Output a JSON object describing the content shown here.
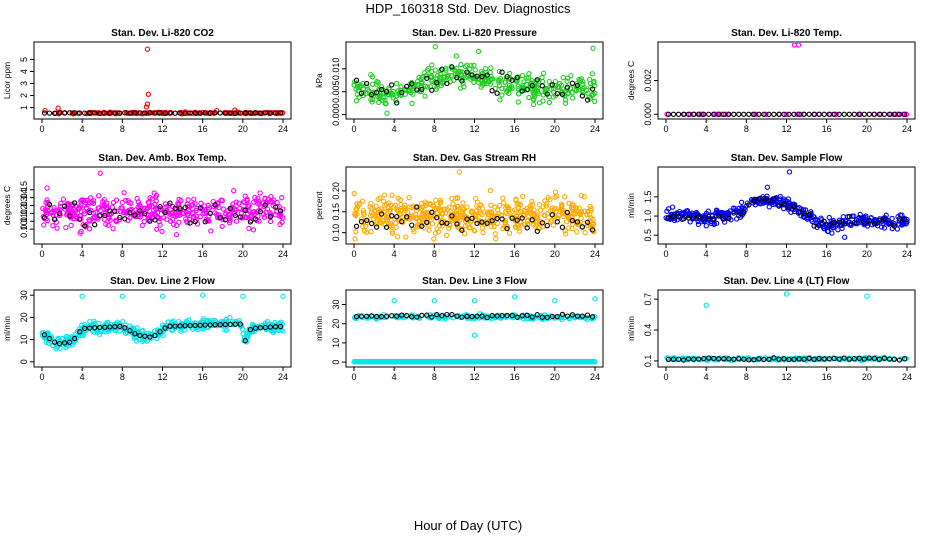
{
  "page": {
    "title": "HDP_160318  Std. Dev. Diagnostics",
    "xlabel": "Hour of Day (UTC)"
  },
  "colors": {
    "axis": "#000000",
    "overlay": "#000000"
  },
  "chart_data": [
    {
      "id": "co2",
      "type": "scatter",
      "title": "Stan. Dev. Li-820 CO2",
      "ylabel": "Licor ppm",
      "color": "#ff0000",
      "xlim": [
        0,
        24
      ],
      "ylim": [
        0.3,
        6.2
      ],
      "xticks": [
        "0",
        "4",
        "8",
        "12",
        "16",
        "20",
        "24"
      ],
      "yticks": [
        {
          "v": 1,
          "t": "1"
        },
        {
          "v": 2,
          "t": "2"
        },
        {
          "v": 3,
          "t": "3"
        },
        {
          "v": 4,
          "t": "4"
        },
        {
          "v": 5,
          "t": "5"
        }
      ],
      "gen": {
        "base": 0.55,
        "noise": 0.06,
        "count": 150,
        "seed": 11
      },
      "shape": [],
      "outliers": [
        {
          "x": 10.5,
          "y": 5.85
        },
        {
          "x": 10.6,
          "y": 2.1
        },
        {
          "x": 10.5,
          "y": 1.3
        },
        {
          "x": 10.4,
          "y": 1.05
        },
        {
          "x": 1.6,
          "y": 0.95
        },
        {
          "x": 0.3,
          "y": 0.75
        },
        {
          "x": 19.2,
          "y": 0.8
        },
        {
          "x": 17.4,
          "y": 0.75
        }
      ],
      "overlay": {
        "base": 0.55,
        "noise": 0.03,
        "count": 48,
        "seed": 5
      }
    },
    {
      "id": "pressure",
      "type": "scatter",
      "title": "Stan. Dev. Li-820 Pressure",
      "ylabel": "kPa",
      "color": "#22cc22",
      "xlim": [
        0,
        24
      ],
      "ylim": [
        -0.0003,
        0.0152
      ],
      "xticks": [
        "0",
        "4",
        "8",
        "12",
        "16",
        "20",
        "24"
      ],
      "yticks": [
        {
          "v": 0,
          "t": "0.000"
        },
        {
          "v": 0.005,
          "t": "0.005"
        },
        {
          "v": 0.01,
          "t": "0.010"
        }
      ],
      "gen": {
        "base": 0.006,
        "noise": 0.0028,
        "count": 380,
        "seed": 21
      },
      "shape": [
        [
          0,
          0.006
        ],
        [
          3,
          0.004
        ],
        [
          6,
          0.0065
        ],
        [
          9,
          0.0085
        ],
        [
          12,
          0.0085
        ],
        [
          14,
          0.0072
        ],
        [
          18,
          0.0055
        ],
        [
          24,
          0.0055
        ]
      ],
      "outliers": [
        {
          "x": 8.1,
          "y": 0.0148
        },
        {
          "x": 23.8,
          "y": 0.0145
        },
        {
          "x": 10.2,
          "y": 0.0128
        },
        {
          "x": 12.4,
          "y": 0.0138
        }
      ],
      "overlay": {
        "base": 0.006,
        "noise": 0.0022,
        "count": 48,
        "seed": 6
      }
    },
    {
      "id": "temp",
      "type": "scatter",
      "title": "Stan. Dev. Li-820 Temp.",
      "ylabel": "degrees C",
      "color": "#ff00ff",
      "xlim": [
        0,
        24
      ],
      "ylim": [
        -0.0001,
        0.0041
      ],
      "xticks": [
        "0",
        "4",
        "8",
        "12",
        "16",
        "20",
        "24"
      ],
      "yticks": [
        {
          "v": 0,
          "t": "0.000"
        },
        {
          "v": 0.002,
          "t": "0.002"
        }
      ],
      "gen": {
        "base": 0.0,
        "noise": 0.0,
        "count": 48,
        "seed": 31
      },
      "shape": [],
      "outliers": [
        {
          "x": 12.8,
          "y": 0.0041
        },
        {
          "x": 13.2,
          "y": 0.0041
        }
      ],
      "overlay": {
        "base": 0.0,
        "noise": 0.0,
        "count": 48,
        "seed": 7
      }
    },
    {
      "id": "ambbox",
      "type": "scatter",
      "title": "Stan. Dev. Amb. Box Temp.",
      "ylabel": "degrees C",
      "color": "#ff00ff",
      "xlim": [
        0,
        24
      ],
      "ylim": [
        0.085,
        0.175
      ],
      "xticks": [
        "0",
        "4",
        "8",
        "12",
        "16",
        "20",
        "24"
      ],
      "yticks": [
        {
          "v": 0.1,
          "t": "0.10"
        },
        {
          "v": 0.11,
          "t": "0.11"
        },
        {
          "v": 0.12,
          "t": "0.12"
        },
        {
          "v": 0.13,
          "t": "0.13"
        },
        {
          "v": 0.14,
          "t": "0.14"
        },
        {
          "v": 0.15,
          "t": "0.15"
        }
      ],
      "gen": {
        "base": 0.122,
        "noise": 0.019,
        "count": 430,
        "seed": 41
      },
      "shape": [],
      "outliers": [
        {
          "x": 5.8,
          "y": 0.171
        },
        {
          "x": 0.5,
          "y": 0.152
        },
        {
          "x": 3.8,
          "y": 0.095
        }
      ],
      "overlay": {
        "base": 0.12,
        "noise": 0.012,
        "count": 48,
        "seed": 8
      }
    },
    {
      "id": "rh",
      "type": "scatter",
      "title": "Stan. Dev. Gas Stream RH",
      "ylabel": "percent",
      "color": "#ffaa00",
      "xlim": [
        0,
        24
      ],
      "ylim": [
        0.08,
        0.25
      ],
      "xticks": [
        "0",
        "4",
        "8",
        "12",
        "16",
        "20",
        "24"
      ],
      "yticks": [
        {
          "v": 0.1,
          "t": "0.10"
        },
        {
          "v": 0.15,
          "t": "0.15"
        },
        {
          "v": 0.2,
          "t": "0.20"
        }
      ],
      "gen": {
        "base": 0.14,
        "noise": 0.042,
        "count": 500,
        "seed": 51
      },
      "shape": [],
      "outliers": [
        {
          "x": 10.5,
          "y": 0.245
        },
        {
          "x": 0.1,
          "y": 0.085
        }
      ],
      "overlay": {
        "base": 0.13,
        "noise": 0.025,
        "count": 48,
        "seed": 9
      }
    },
    {
      "id": "sample",
      "type": "scatter",
      "title": "Stan. Dev. Sample Flow",
      "ylabel": "ml/min",
      "color": "#0000ff",
      "xlim": [
        0,
        24
      ],
      "ylim": [
        0.35,
        2.2
      ],
      "xticks": [
        "0",
        "4",
        "8",
        "12",
        "16",
        "20",
        "24"
      ],
      "yticks": [
        {
          "v": 0.5,
          "t": "0.5"
        },
        {
          "v": 1.0,
          "t": "1.0"
        },
        {
          "v": 1.5,
          "t": "1.5"
        }
      ],
      "gen": {
        "base": 1.0,
        "noise": 0.16,
        "count": 400,
        "seed": 61
      },
      "shape": [
        [
          0,
          1.05
        ],
        [
          4,
          0.95
        ],
        [
          7,
          1.05
        ],
        [
          9,
          1.4
        ],
        [
          12,
          1.35
        ],
        [
          14,
          1.0
        ],
        [
          16,
          0.75
        ],
        [
          18,
          0.85
        ],
        [
          24,
          0.85
        ]
      ],
      "outliers": [
        {
          "x": 12.3,
          "y": 2.15
        },
        {
          "x": 17.8,
          "y": 0.45
        },
        {
          "x": 10.1,
          "y": 1.75
        }
      ],
      "overlay": {
        "base": 0.95,
        "noise": 0.12,
        "count": 48,
        "seed": 10
      }
    },
    {
      "id": "line2",
      "type": "scatter",
      "title": "Stan. Dev. Line 2 Flow",
      "ylabel": "ml/min",
      "color": "#00e5ee",
      "xlim": [
        0,
        24
      ],
      "ylim": [
        -1,
        31
      ],
      "xticks": [
        "0",
        "4",
        "8",
        "12",
        "16",
        "20",
        "24"
      ],
      "yticks": [
        {
          "v": 0,
          "t": "0"
        },
        {
          "v": 10,
          "t": "10"
        },
        {
          "v": 20,
          "t": "20"
        },
        {
          "v": 30,
          "t": "30"
        }
      ],
      "gen": {
        "base": 15,
        "noise": 2.5,
        "count": 420,
        "seed": 71
      },
      "shape": [
        [
          0,
          13
        ],
        [
          1.5,
          8
        ],
        [
          3,
          9
        ],
        [
          4,
          15
        ],
        [
          8,
          16
        ],
        [
          9.5,
          12
        ],
        [
          11,
          11
        ],
        [
          12.5,
          16
        ],
        [
          19.8,
          17
        ],
        [
          20.2,
          9
        ],
        [
          20.8,
          15
        ],
        [
          24,
          16
        ]
      ],
      "outliers": [
        {
          "x": 4,
          "y": 29.5
        },
        {
          "x": 8,
          "y": 29.5
        },
        {
          "x": 12,
          "y": 29.5
        },
        {
          "x": 16,
          "y": 30
        },
        {
          "x": 20,
          "y": 29.5
        },
        {
          "x": 24,
          "y": 29.5
        }
      ],
      "overlay": {
        "base": 0.3,
        "noise": 0.0,
        "count": 48,
        "seed": 12
      }
    },
    {
      "id": "line3",
      "type": "scatter",
      "title": "Stan. Dev. Line 3 Flow",
      "ylabel": "ml/min",
      "color": "#00e5ee",
      "xlim": [
        0,
        24
      ],
      "ylim": [
        -1,
        36
      ],
      "xticks": [
        "0",
        "4",
        "8",
        "12",
        "16",
        "20",
        "24"
      ],
      "yticks": [
        {
          "v": 0,
          "t": "0"
        },
        {
          "v": 10,
          "t": "10"
        },
        {
          "v": 20,
          "t": "20"
        },
        {
          "v": 30,
          "t": "30"
        }
      ],
      "gen": {
        "base": 23.5,
        "noise": 1.2,
        "count": 200,
        "seed": 81
      },
      "shape": [],
      "outliers": [
        {
          "x": 4,
          "y": 32
        },
        {
          "x": 8,
          "y": 32
        },
        {
          "x": 12,
          "y": 14
        },
        {
          "x": 16,
          "y": 34
        },
        {
          "x": 20,
          "y": 32
        },
        {
          "x": 24,
          "y": 33
        },
        {
          "x": 12,
          "y": 32
        }
      ],
      "overlay": {
        "base": 24,
        "noise": 0.8,
        "count": 48,
        "seed": 13
      },
      "baseline": {
        "y": 0.2,
        "count": 200
      }
    },
    {
      "id": "line4",
      "type": "scatter",
      "title": "Stan. Dev. Line 4 (LT) Flow",
      "ylabel": "ml/min",
      "color": "#00e5ee",
      "xlim": [
        0,
        24
      ],
      "ylim": [
        0.07,
        0.76
      ],
      "xticks": [
        "0",
        "4",
        "8",
        "12",
        "16",
        "20",
        "24"
      ],
      "yticks": [
        {
          "v": 0.1,
          "t": "0.1"
        },
        {
          "v": 0.4,
          "t": "0.4"
        },
        {
          "v": 0.7,
          "t": "0.7"
        }
      ],
      "gen": {
        "base": 0.12,
        "noise": 0.012,
        "count": 200,
        "seed": 91
      },
      "shape": [],
      "outliers": [
        {
          "x": 4,
          "y": 0.64
        },
        {
          "x": 12,
          "y": 0.75
        },
        {
          "x": 20,
          "y": 0.73
        }
      ],
      "overlay": {
        "base": 0.12,
        "noise": 0.01,
        "count": 48,
        "seed": 14
      }
    }
  ]
}
